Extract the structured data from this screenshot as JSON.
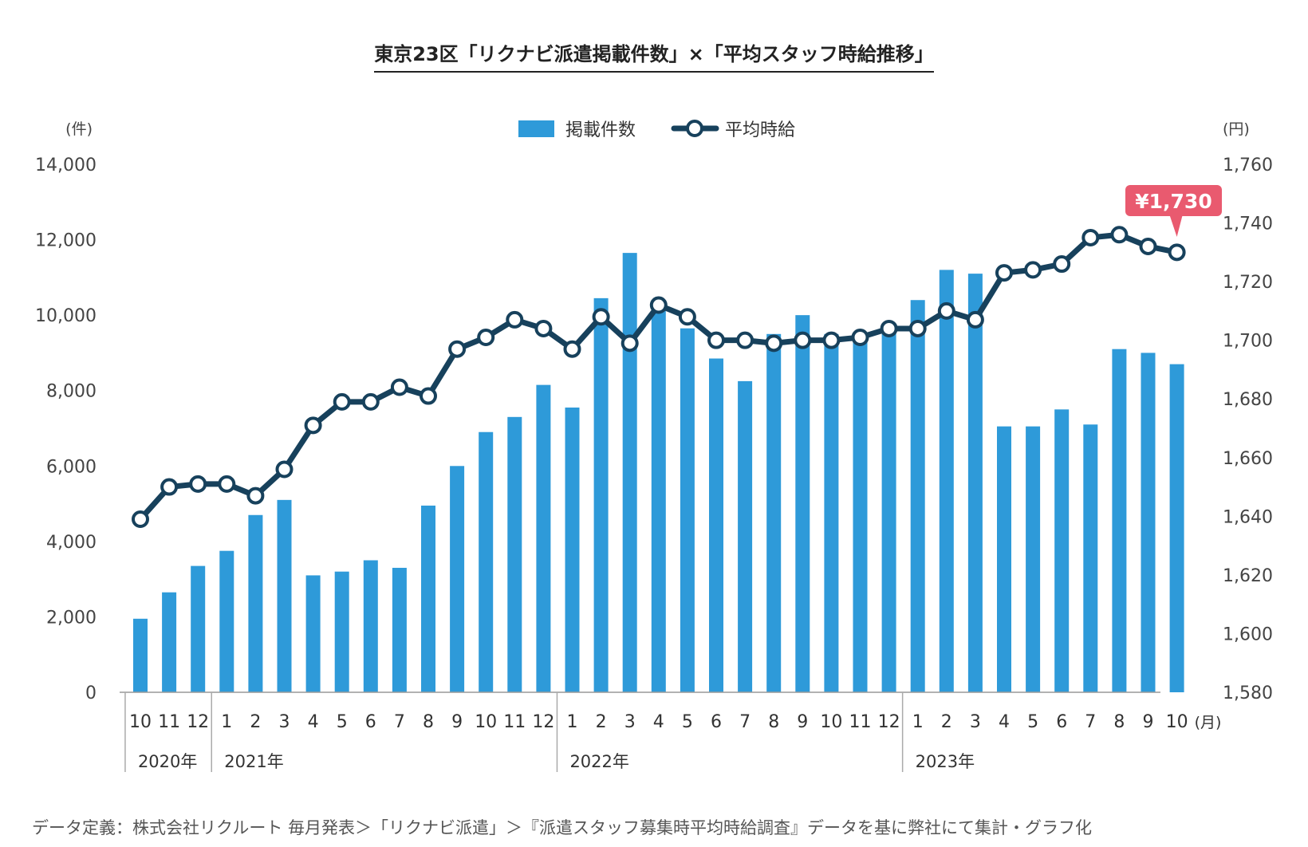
{
  "title": "東京23区「リクナビ派遣掲載件数」×「平均スタッフ時給推移」",
  "footnote": "データ定義：株式会社リクルート 毎月発表＞「リクナビ派遣」＞『派遣スタッフ募集時平均時給調査』データを基に弊社にて集計・グラフ化",
  "chart_data": {
    "type": "bar",
    "title": "東京23区「リクナビ派遣掲載件数」×「平均スタッフ時給推移」",
    "categories": [
      "10",
      "11",
      "12",
      "1",
      "2",
      "3",
      "4",
      "5",
      "6",
      "7",
      "8",
      "9",
      "10",
      "11",
      "12",
      "1",
      "2",
      "3",
      "4",
      "5",
      "6",
      "7",
      "8",
      "9",
      "10",
      "11",
      "12",
      "1",
      "2",
      "3",
      "4",
      "5",
      "6",
      "7",
      "8",
      "9",
      "10"
    ],
    "x_unit": "(月)",
    "year_groups": [
      {
        "label": "2020年",
        "start": 0
      },
      {
        "label": "2021年",
        "start": 3
      },
      {
        "label": "2022年",
        "start": 15
      },
      {
        "label": "2023年",
        "start": 27
      }
    ],
    "series": [
      {
        "name": "掲載件数",
        "type": "bar",
        "axis": "left",
        "color": "#2e9ad9",
        "values": [
          1950,
          2650,
          3350,
          3750,
          4700,
          5100,
          3100,
          3200,
          3500,
          3300,
          4950,
          6000,
          6900,
          7300,
          8150,
          7550,
          10450,
          11650,
          10200,
          9650,
          8850,
          8250,
          9500,
          10000,
          9500,
          9400,
          9600,
          10400,
          11200,
          11100,
          7050,
          7050,
          7500,
          7100,
          9100,
          9000,
          8700
        ]
      },
      {
        "name": "平均時給",
        "type": "line",
        "axis": "right",
        "color": "#17415c",
        "values": [
          1639,
          1650,
          1651,
          1651,
          1647,
          1656,
          1671,
          1679,
          1679,
          1684,
          1681,
          1697,
          1701,
          1707,
          1704,
          1697,
          1708,
          1699,
          1712,
          1708,
          1700,
          1700,
          1699,
          1700,
          1700,
          1701,
          1704,
          1704,
          1710,
          1707,
          1723,
          1724,
          1726,
          1735,
          1736,
          1732,
          1730
        ]
      }
    ],
    "y_left": {
      "unit": "(件)",
      "min": 0,
      "max": 14000,
      "ticks": [
        "0",
        "2,000",
        "4,000",
        "6,000",
        "8,000",
        "10,000",
        "12,000",
        "14,000"
      ]
    },
    "y_right": {
      "unit": "(円)",
      "min": 1580,
      "max": 1760,
      "ticks": [
        "1,580",
        "1,600",
        "1,620",
        "1,640",
        "1,660",
        "1,680",
        "1,700",
        "1,720",
        "1,740",
        "1,760"
      ]
    },
    "annotation": {
      "text": "¥1,730",
      "index": 36,
      "color": "#e95a6f"
    },
    "legend_position": "top-center",
    "grid": false
  }
}
